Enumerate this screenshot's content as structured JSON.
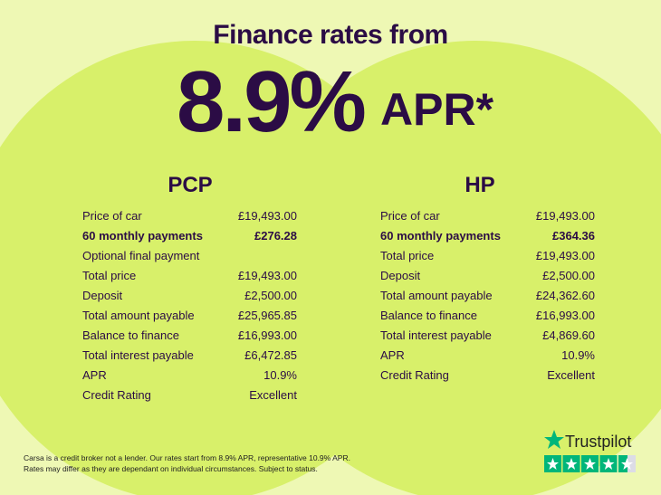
{
  "header": {
    "title": "Finance rates from",
    "rate": "8.9%",
    "suffix": "APR*"
  },
  "tables": [
    {
      "title": "PCP",
      "highlight_row": 1,
      "rows": [
        [
          "Price of car",
          "£19,493.00"
        ],
        [
          "60 monthly payments",
          "£276.28"
        ],
        [
          "Optional final payment",
          ""
        ],
        [
          "Total price",
          "£19,493.00"
        ],
        [
          "Deposit",
          "£2,500.00"
        ],
        [
          "Total amount payable",
          "£25,965.85"
        ],
        [
          "Balance to finance",
          "£16,993.00"
        ],
        [
          "Total interest payable",
          "£6,472.85"
        ],
        [
          "APR",
          "10.9%"
        ],
        [
          "Credit Rating",
          "Excellent"
        ]
      ]
    },
    {
      "title": "HP",
      "highlight_row": 1,
      "rows": [
        [
          "Price of car",
          "£19,493.00"
        ],
        [
          "60 monthly payments",
          "£364.36"
        ],
        [
          "Total price",
          "£19,493.00"
        ],
        [
          "Deposit",
          "£2,500.00"
        ],
        [
          "Total amount payable",
          "£24,362.60"
        ],
        [
          "Balance to finance",
          "£16,993.00"
        ],
        [
          "Total interest payable",
          "£4,869.60"
        ],
        [
          "APR",
          "10.9%"
        ],
        [
          "Credit Rating",
          "Excellent"
        ]
      ]
    }
  ],
  "footer": {
    "disclaimer": [
      "Carsa is a credit broker not a lender. Our rates start from 8.9% APR, representative 10.9% APR.",
      "Rates may differ as they are dependant on individual circumstances. Subject to status."
    ]
  },
  "badge": {
    "brand": "Trustpilot"
  }
}
